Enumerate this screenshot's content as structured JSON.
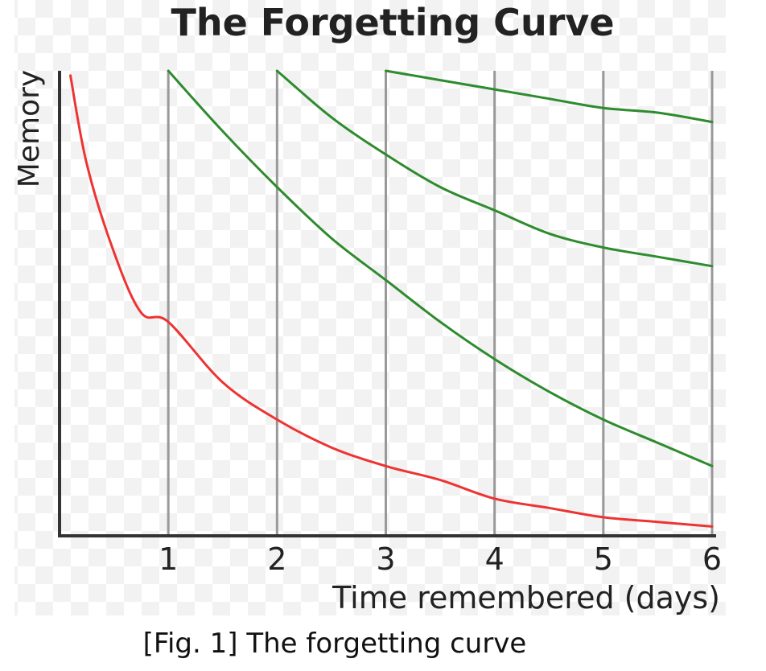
{
  "caption": "[Fig. 1] The forgetting curve",
  "chart_data": {
    "type": "line",
    "title": "The Forgetting Curve",
    "xlabel": "Time remembered (days)",
    "ylabel": "Memory",
    "xlim": [
      0,
      6
    ],
    "ylim": [
      0,
      100
    ],
    "x_ticks": [
      "1",
      "2",
      "3",
      "4",
      "5",
      "6"
    ],
    "grid": "vertical lines at each day",
    "colors": {
      "forgetting": "#ee3333",
      "review": "#2e8b2e",
      "axis": "#333333",
      "grid": "#999999"
    },
    "series": [
      {
        "color": "forgetting",
        "x": [
          0.1,
          0.25,
          0.5,
          0.75,
          1,
          1.5,
          2,
          2.5,
          3,
          3.5,
          4,
          4.5,
          5,
          5.5,
          6
        ],
        "y": [
          99,
          80,
          61,
          48,
          46,
          33,
          25,
          19,
          15,
          12,
          8,
          6,
          4,
          3,
          2
        ]
      },
      {
        "color": "review",
        "x": [
          1,
          1.5,
          2,
          2.5,
          3,
          3.5,
          4,
          4.5,
          5,
          5.5,
          6
        ],
        "y": [
          100,
          87,
          75,
          64,
          55,
          46,
          38,
          31,
          25,
          20,
          15
        ]
      },
      {
        "color": "review",
        "x": [
          2,
          2.5,
          3,
          3.5,
          4,
          4.5,
          5,
          5.5,
          6
        ],
        "y": [
          100,
          90,
          82,
          75,
          70,
          65,
          62,
          60,
          58
        ]
      },
      {
        "color": "review",
        "x": [
          3,
          3.5,
          4,
          4.5,
          5,
          5.5,
          6
        ],
        "y": [
          100,
          98,
          96,
          94,
          92,
          91,
          89
        ]
      }
    ]
  }
}
